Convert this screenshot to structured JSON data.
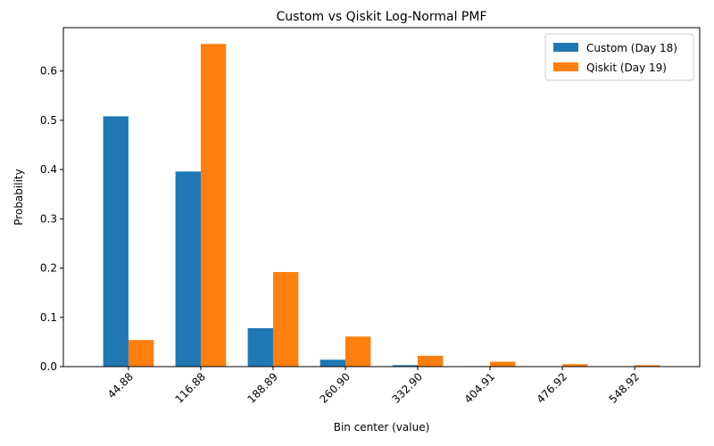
{
  "chart_data": {
    "type": "bar",
    "title": "Custom vs Qiskit Log-Normal PMF",
    "xlabel": "Bin center (value)",
    "ylabel": "Probability",
    "categories": [
      "44.88",
      "116.88",
      "188.89",
      "260.90",
      "332.90",
      "404.91",
      "476.92",
      "548.92"
    ],
    "series": [
      {
        "name": "Custom (Day 18)",
        "color": "#1f77b4",
        "values": [
          0.508,
          0.396,
          0.078,
          0.014,
          0.003,
          0.001,
          0.0003,
          0.0001
        ]
      },
      {
        "name": "Qiskit (Day 19)",
        "color": "#ff7f0e",
        "values": [
          0.054,
          0.655,
          0.192,
          0.061,
          0.022,
          0.01,
          0.005,
          0.003
        ]
      }
    ],
    "ylim": [
      0,
      0.688
    ],
    "yticks": [
      "0.0",
      "0.1",
      "0.2",
      "0.3",
      "0.4",
      "0.5",
      "0.6"
    ],
    "legend_position": "top-right",
    "grid": false
  }
}
